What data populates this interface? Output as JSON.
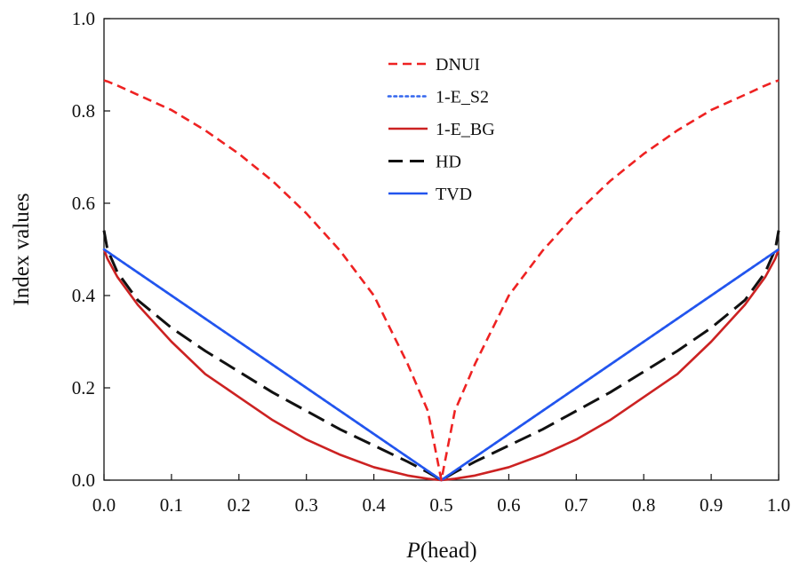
{
  "chart_data": {
    "type": "line",
    "title": "",
    "xlabel_italic": "P",
    "xlabel_rest": "(head)",
    "ylabel": "Index values",
    "xlim": [
      0.0,
      1.0
    ],
    "ylim": [
      0.0,
      1.0
    ],
    "x_ticks": [
      "0.0",
      "0.1",
      "0.2",
      "0.3",
      "0.4",
      "0.5",
      "0.6",
      "0.7",
      "0.8",
      "0.9",
      "1.0"
    ],
    "y_ticks": [
      "0.0",
      "0.2",
      "0.4",
      "0.6",
      "0.8",
      "1.0"
    ],
    "grid": false,
    "legend_position": "top-center",
    "x": [
      0.0,
      0.005,
      0.02,
      0.05,
      0.1,
      0.15,
      0.2,
      0.25,
      0.3,
      0.35,
      0.4,
      0.45,
      0.48,
      0.5,
      0.52,
      0.55,
      0.6,
      0.65,
      0.7,
      0.75,
      0.8,
      0.85,
      0.9,
      0.95,
      0.98,
      0.995,
      1.0
    ],
    "series": [
      {
        "name": "DNUI",
        "color": "#ee2222",
        "style": "dashed",
        "values": [
          0.866,
          0.864,
          0.855,
          0.835,
          0.802,
          0.758,
          0.707,
          0.648,
          0.578,
          0.497,
          0.4,
          0.252,
          0.15,
          0.0,
          0.15,
          0.252,
          0.4,
          0.497,
          0.578,
          0.648,
          0.707,
          0.758,
          0.802,
          0.835,
          0.855,
          0.864,
          0.866
        ]
      },
      {
        "name": "1-E_S2",
        "color": "#3366ee",
        "style": "dotted",
        "values": [
          0.5,
          0.495,
          0.48,
          0.45,
          0.4,
          0.35,
          0.3,
          0.25,
          0.2,
          0.15,
          0.1,
          0.05,
          0.02,
          0.0,
          0.02,
          0.05,
          0.1,
          0.15,
          0.2,
          0.25,
          0.3,
          0.35,
          0.4,
          0.45,
          0.48,
          0.495,
          0.5
        ]
      },
      {
        "name": "1-E_BG",
        "color": "#cc2222",
        "style": "solid",
        "values": [
          0.5,
          0.48,
          0.44,
          0.38,
          0.3,
          0.23,
          0.18,
          0.13,
          0.088,
          0.055,
          0.028,
          0.01,
          0.003,
          0.0,
          0.003,
          0.01,
          0.028,
          0.055,
          0.088,
          0.13,
          0.18,
          0.23,
          0.3,
          0.38,
          0.44,
          0.48,
          0.5
        ]
      },
      {
        "name": "HD",
        "color": "#111111",
        "style": "longdash",
        "values": [
          0.541,
          0.5,
          0.45,
          0.39,
          0.33,
          0.28,
          0.235,
          0.19,
          0.15,
          0.11,
          0.075,
          0.04,
          0.017,
          0.0,
          0.017,
          0.04,
          0.075,
          0.11,
          0.15,
          0.19,
          0.235,
          0.28,
          0.33,
          0.39,
          0.45,
          0.5,
          0.541
        ]
      },
      {
        "name": "TVD",
        "color": "#2255ee",
        "style": "solid",
        "values": [
          0.5,
          0.495,
          0.48,
          0.45,
          0.4,
          0.35,
          0.3,
          0.25,
          0.2,
          0.15,
          0.1,
          0.05,
          0.02,
          0.0,
          0.02,
          0.05,
          0.1,
          0.15,
          0.2,
          0.25,
          0.3,
          0.35,
          0.4,
          0.45,
          0.48,
          0.495,
          0.5
        ]
      }
    ]
  }
}
